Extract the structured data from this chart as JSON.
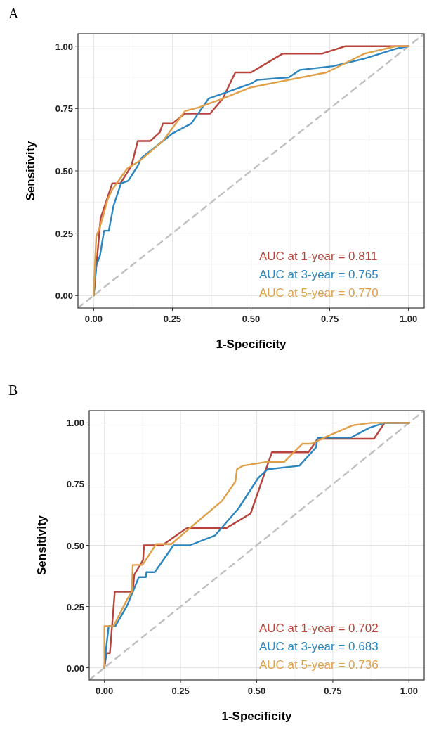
{
  "chart_data": [
    {
      "type": "line",
      "title": "A",
      "xlabel": "1-Specificity",
      "ylabel": "Sensitivity",
      "xlim": [
        -0.05,
        1.05
      ],
      "ylim": [
        -0.05,
        1.05
      ],
      "xticks": [
        {
          "value": 0,
          "label": "0.00"
        },
        {
          "value": 0.25,
          "label": "0.25"
        },
        {
          "value": 0.5,
          "label": "0.50"
        },
        {
          "value": 0.75,
          "label": "0.75"
        },
        {
          "value": 1,
          "label": "1.00"
        }
      ],
      "yticks": [
        {
          "value": 0,
          "label": "0.00"
        },
        {
          "value": 0.25,
          "label": "0.25"
        },
        {
          "value": 0.5,
          "label": "0.50"
        },
        {
          "value": 0.75,
          "label": "0.75"
        },
        {
          "value": 1,
          "label": "1.00"
        }
      ],
      "grid": true,
      "legend": "bottom right",
      "marker": "none",
      "series": [
        {
          "name": "AUC at 1-year = 0.811",
          "color": "#b8433a",
          "x": [
            0,
            0.022,
            0.059,
            0.085,
            0.12,
            0.14,
            0.18,
            0.21,
            0.22,
            0.25,
            0.29,
            0.37,
            0.41,
            0.45,
            0.5,
            0.6,
            0.725,
            0.8,
            1
          ],
          "values": [
            0,
            0.31,
            0.45,
            0.45,
            0.52,
            0.62,
            0.62,
            0.655,
            0.69,
            0.69,
            0.73,
            0.73,
            0.79,
            0.895,
            0.895,
            0.97,
            0.97,
            1,
            1
          ]
        },
        {
          "name": "AUC at 3-year = 0.765",
          "color": "#2b86c0",
          "x": [
            0,
            0.008,
            0.02,
            0.033,
            0.048,
            0.063,
            0.087,
            0.11,
            0.14,
            0.15,
            0.22,
            0.25,
            0.31,
            0.365,
            0.41,
            0.5,
            0.52,
            0.62,
            0.655,
            0.76,
            0.86,
            0.96,
            1
          ],
          "values": [
            0,
            0.12,
            0.16,
            0.26,
            0.26,
            0.36,
            0.45,
            0.46,
            0.52,
            0.55,
            0.62,
            0.65,
            0.69,
            0.79,
            0.81,
            0.85,
            0.865,
            0.875,
            0.905,
            0.92,
            0.95,
            0.99,
            1
          ]
        },
        {
          "name": "AUC at 5-year = 0.770",
          "color": "#e0a04a",
          "x": [
            0,
            0,
            0.008,
            0.026,
            0.044,
            0.059,
            0.107,
            0.146,
            0.22,
            0.29,
            0.335,
            0.41,
            0.5,
            0.52,
            0.58,
            0.74,
            0.86,
            0.96,
            1
          ],
          "values": [
            0,
            0.02,
            0.235,
            0.3,
            0.385,
            0.425,
            0.51,
            0.54,
            0.62,
            0.74,
            0.755,
            0.79,
            0.835,
            0.84,
            0.855,
            0.895,
            0.97,
            1,
            1
          ]
        },
        {
          "color": "#c0c0c0",
          "line_style": "dashed",
          "x": [
            -0.05,
            1.05
          ],
          "values": [
            -0.05,
            1.05
          ]
        }
      ]
    },
    {
      "type": "line",
      "title": "B",
      "xlabel": "1-Specificity",
      "ylabel": "Sensitivity",
      "xlim": [
        -0.05,
        1.05
      ],
      "ylim": [
        -0.05,
        1.05
      ],
      "xticks": [
        {
          "value": 0,
          "label": "0.00"
        },
        {
          "value": 0.25,
          "label": "0.25"
        },
        {
          "value": 0.5,
          "label": "0.50"
        },
        {
          "value": 0.75,
          "label": "0.75"
        },
        {
          "value": 1,
          "label": "1.00"
        }
      ],
      "yticks": [
        {
          "value": 0,
          "label": "0.00"
        },
        {
          "value": 0.25,
          "label": "0.25"
        },
        {
          "value": 0.5,
          "label": "0.50"
        },
        {
          "value": 0.75,
          "label": "0.75"
        },
        {
          "value": 1,
          "label": "1.00"
        }
      ],
      "grid": true,
      "legend": "bottom right",
      "marker": "none",
      "series": [
        {
          "name": "AUC at 1-year = 0.702",
          "color": "#b8433a",
          "x": [
            0,
            0.007,
            0.018,
            0.034,
            0.093,
            0.098,
            0.127,
            0.13,
            0.19,
            0.27,
            0.4,
            0.44,
            0.48,
            0.55,
            0.67,
            0.7,
            0.885,
            0.92,
            1
          ],
          "values": [
            0,
            0.06,
            0.06,
            0.31,
            0.31,
            0.38,
            0.44,
            0.5,
            0.5,
            0.57,
            0.57,
            0.6,
            0.63,
            0.88,
            0.88,
            0.935,
            0.935,
            1,
            1
          ]
        },
        {
          "name": "AUC at 3-year = 0.683",
          "color": "#2b86c0",
          "x": [
            0,
            0.003,
            0.014,
            0.036,
            0.075,
            0.113,
            0.136,
            0.138,
            0.165,
            0.227,
            0.28,
            0.363,
            0.44,
            0.505,
            0.535,
            0.64,
            0.695,
            0.7,
            0.81,
            0.87,
            0.92,
            1
          ],
          "values": [
            0,
            0.05,
            0.17,
            0.17,
            0.255,
            0.37,
            0.37,
            0.39,
            0.39,
            0.5,
            0.5,
            0.54,
            0.65,
            0.775,
            0.81,
            0.825,
            0.9,
            0.94,
            0.94,
            0.98,
            1,
            1
          ]
        },
        {
          "name": "AUC at 5-year = 0.736",
          "color": "#e0a04a",
          "x": [
            0,
            0,
            0.03,
            0.075,
            0.09,
            0.093,
            0.125,
            0.17,
            0.22,
            0.28,
            0.385,
            0.43,
            0.435,
            0.455,
            0.53,
            0.59,
            0.65,
            0.68,
            0.74,
            0.815,
            0.875,
            1
          ],
          "values": [
            0,
            0.17,
            0.17,
            0.28,
            0.31,
            0.42,
            0.42,
            0.505,
            0.505,
            0.57,
            0.68,
            0.76,
            0.81,
            0.825,
            0.84,
            0.84,
            0.915,
            0.915,
            0.95,
            0.99,
            1,
            1
          ]
        },
        {
          "color": "#c0c0c0",
          "line_style": "dashed",
          "x": [
            -0.05,
            1.05
          ],
          "values": [
            -0.05,
            1.05
          ]
        }
      ]
    }
  ]
}
